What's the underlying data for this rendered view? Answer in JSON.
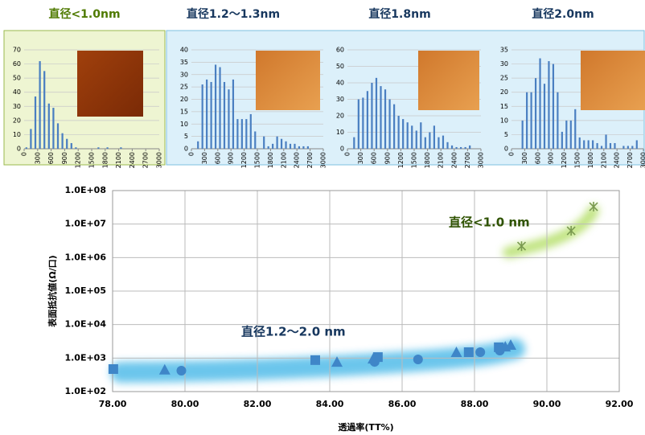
{
  "chart_data": [
    {
      "type": "histogram",
      "title": "直径<1.0nm",
      "title_color": "#4f7a00",
      "color": "#4a7fc1",
      "bins": [
        0,
        100,
        200,
        300,
        400,
        500,
        600,
        700,
        800,
        900,
        1000,
        1100,
        1200,
        1300,
        1400,
        1500,
        1600,
        1700,
        1800,
        1900,
        2000,
        2100,
        2200,
        2300,
        2400,
        2500,
        2600,
        2700,
        2800,
        2900,
        3000
      ],
      "counts": [
        1,
        14,
        37,
        62,
        55,
        32,
        29,
        18,
        11,
        7,
        4,
        1,
        0,
        0,
        0,
        0,
        1,
        0,
        1,
        0,
        0,
        1,
        0,
        0,
        0,
        0,
        0,
        0,
        0,
        0
      ],
      "xlim": [
        0,
        3000
      ],
      "xticks": [
        0,
        300,
        600,
        900,
        1200,
        1500,
        1800,
        2100,
        2400,
        2700,
        3000
      ],
      "ylim": [
        0,
        70
      ],
      "yticks": [
        0,
        10,
        20,
        30,
        40,
        50,
        60,
        70
      ],
      "grid": true
    },
    {
      "type": "histogram",
      "title": "直径1.2～1.3nm",
      "title_color": "#17375e",
      "color": "#4a7fc1",
      "bins": [
        0,
        100,
        200,
        300,
        400,
        500,
        600,
        700,
        800,
        900,
        1000,
        1100,
        1200,
        1300,
        1400,
        1500,
        1600,
        1700,
        1800,
        1900,
        2000,
        2100,
        2200,
        2300,
        2400,
        2500,
        2600,
        2700,
        2800,
        2900,
        3000
      ],
      "counts": [
        0,
        3,
        26,
        28,
        27,
        34,
        33,
        27,
        24,
        28,
        12,
        12,
        12,
        14,
        7,
        0,
        5,
        1,
        2,
        5,
        4,
        3,
        2,
        2,
        1,
        1,
        1,
        0,
        0,
        0
      ],
      "xlim": [
        0,
        3000
      ],
      "xticks": [
        0,
        300,
        600,
        900,
        1200,
        1500,
        1800,
        2100,
        2400,
        2700,
        3000
      ],
      "ylim": [
        0,
        40
      ],
      "yticks": [
        0,
        5,
        10,
        15,
        20,
        25,
        30,
        35,
        40
      ],
      "grid": true
    },
    {
      "type": "histogram",
      "title": "直径1.8nm",
      "title_color": "#17375e",
      "color": "#4a7fc1",
      "bins": [
        0,
        100,
        200,
        300,
        400,
        500,
        600,
        700,
        800,
        900,
        1000,
        1100,
        1200,
        1300,
        1400,
        1500,
        1600,
        1700,
        1800,
        1900,
        2000,
        2100,
        2200,
        2300,
        2400,
        2500,
        2600,
        2700,
        2800,
        2900,
        3000
      ],
      "counts": [
        0,
        7,
        30,
        31,
        35,
        40,
        43,
        38,
        36,
        30,
        27,
        20,
        18,
        16,
        14,
        11,
        16,
        7,
        10,
        14,
        7,
        8,
        4,
        2,
        1,
        1,
        1,
        2,
        0,
        0
      ],
      "xlim": [
        0,
        3000
      ],
      "xticks": [
        0,
        300,
        600,
        900,
        1200,
        1500,
        1800,
        2100,
        2400,
        2700,
        3000
      ],
      "ylim": [
        0,
        60
      ],
      "yticks": [
        0,
        10,
        20,
        30,
        40,
        50,
        60
      ],
      "grid": true
    },
    {
      "type": "histogram",
      "title": "直径2.0nm",
      "title_color": "#17375e",
      "color": "#4a7fc1",
      "bins": [
        0,
        100,
        200,
        300,
        400,
        500,
        600,
        700,
        800,
        900,
        1000,
        1100,
        1200,
        1300,
        1400,
        1500,
        1600,
        1700,
        1800,
        1900,
        2000,
        2100,
        2200,
        2300,
        2400,
        2500,
        2600,
        2700,
        2800,
        2900,
        3000
      ],
      "counts": [
        0,
        0,
        10,
        20,
        20,
        25,
        32,
        23,
        31,
        30,
        20,
        6,
        10,
        10,
        14,
        4,
        3,
        3,
        3,
        2,
        1,
        5,
        2,
        2,
        0,
        1,
        1,
        1,
        3,
        0
      ],
      "xlim": [
        0,
        3000
      ],
      "xticks": [
        0,
        300,
        600,
        900,
        1200,
        1500,
        1800,
        2100,
        2400,
        2700,
        3000
      ],
      "ylim": [
        0,
        35
      ],
      "yticks": [
        0,
        5,
        10,
        15,
        20,
        25,
        30,
        35
      ],
      "grid": true
    },
    {
      "type": "scatter",
      "x_label": "透過率(TT%)",
      "y_label": "表面抵抗値(Ω/口)",
      "yscale": "log",
      "grid": true,
      "annotations": [
        "直径<1.0 nm",
        "直径1.2～2.0 nm"
      ],
      "xlim": [
        78,
        92
      ],
      "xticks": [
        {
          "value": 78,
          "label": "78.00"
        },
        {
          "value": 80,
          "label": "80.00"
        },
        {
          "value": 82,
          "label": "82.00"
        },
        {
          "value": 84,
          "label": "84.00"
        },
        {
          "value": 86,
          "label": "86.00"
        },
        {
          "value": 88,
          "label": "88.00"
        },
        {
          "value": 90,
          "label": "90.00"
        },
        {
          "value": 92,
          "label": "92.00"
        }
      ],
      "ylim": [
        100,
        100000000
      ],
      "yticks": [
        {
          "value": 100,
          "label": "1.0E+02"
        },
        {
          "value": 1000,
          "label": "1.0E+03"
        },
        {
          "value": 10000,
          "label": "1.0E+04"
        },
        {
          "value": 100000,
          "label": "1.0E+05"
        },
        {
          "value": 1000000,
          "label": "1.0E+06"
        },
        {
          "value": 10000000,
          "label": "1.0E+07"
        },
        {
          "value": 100000000,
          "label": "1.0E+08"
        }
      ],
      "series": [
        {
          "marker": "square",
          "color": "#3f86c8",
          "x": [
            78.02,
            83.6,
            85.33,
            87.84,
            88.67
          ],
          "values": [
            470,
            870,
            1070,
            1500,
            2100
          ]
        },
        {
          "marker": "triangle",
          "color": "#3f86c8",
          "x": [
            79.44,
            84.2,
            85.2,
            87.5,
            88.85,
            89.0
          ],
          "values": [
            450,
            770,
            960,
            1500,
            2200,
            2460
          ]
        },
        {
          "marker": "circle",
          "color": "#3f86c8",
          "x": [
            79.9,
            85.24,
            86.44,
            88.16,
            88.7
          ],
          "values": [
            420,
            770,
            910,
            1500,
            1670
          ]
        },
        {
          "marker": "star",
          "color": "#7a9a50",
          "x": [
            89.3,
            90.67,
            91.29
          ],
          "values": [
            2200000,
            6300000,
            33000000
          ]
        }
      ]
    }
  ]
}
